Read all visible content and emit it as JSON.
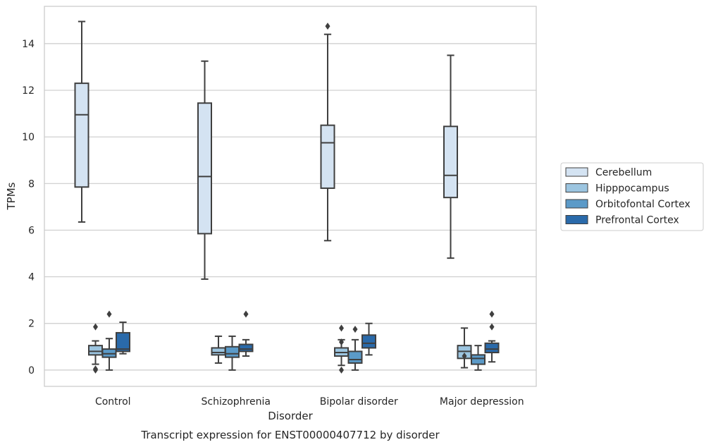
{
  "chart_data": {
    "type": "boxplot",
    "title": "Transcript expression for ENST00000407712 by disorder",
    "xlabel": "Disorder",
    "ylabel": "TPMs",
    "categories": [
      "Control",
      "Schizophrenia",
      "Bipolar disorder",
      "Major depression"
    ],
    "ylim": [
      -0.7,
      15.6
    ],
    "yticks": [
      0,
      2,
      4,
      6,
      8,
      10,
      12,
      14
    ],
    "grid": "horizontal",
    "legend_position": "right",
    "series": [
      {
        "name": "Cerebellum",
        "color": "#d4e3f2",
        "boxes": [
          {
            "whislo": 6.35,
            "q1": 7.85,
            "med": 10.95,
            "q3": 12.3,
            "whishi": 14.95,
            "fliers": []
          },
          {
            "whislo": 3.9,
            "q1": 5.85,
            "med": 8.3,
            "q3": 11.45,
            "whishi": 13.25,
            "fliers": []
          },
          {
            "whislo": 5.55,
            "q1": 7.8,
            "med": 9.75,
            "q3": 10.5,
            "whishi": 14.4,
            "fliers": [
              14.75
            ]
          },
          {
            "whislo": 4.8,
            "q1": 7.4,
            "med": 8.35,
            "q3": 10.45,
            "whishi": 13.5,
            "fliers": []
          }
        ]
      },
      {
        "name": "Hipppocampus",
        "color": "#9cc5e0",
        "boxes": [
          {
            "whislo": 0.25,
            "q1": 0.65,
            "med": 0.8,
            "q3": 1.05,
            "whishi": 1.25,
            "fliers": [
              1.85,
              0.05,
              0.0
            ]
          },
          {
            "whislo": 0.3,
            "q1": 0.65,
            "med": 0.75,
            "q3": 0.95,
            "whishi": 1.45,
            "fliers": []
          },
          {
            "whislo": 0.2,
            "q1": 0.6,
            "med": 0.75,
            "q3": 0.95,
            "whishi": 1.3,
            "fliers": [
              1.8,
              1.2,
              0.0
            ]
          },
          {
            "whislo": 0.1,
            "q1": 0.5,
            "med": 0.8,
            "q3": 1.05,
            "whishi": 1.8,
            "fliers": [
              0.6
            ]
          }
        ]
      },
      {
        "name": "Orbitofontal Cortex",
        "color": "#5b9ac8",
        "boxes": [
          {
            "whislo": 0.0,
            "q1": 0.55,
            "med": 0.7,
            "q3": 0.9,
            "whishi": 1.35,
            "fliers": [
              2.4
            ]
          },
          {
            "whislo": 0.0,
            "q1": 0.55,
            "med": 0.7,
            "q3": 1.0,
            "whishi": 1.45,
            "fliers": []
          },
          {
            "whislo": 0.0,
            "q1": 0.3,
            "med": 0.45,
            "q3": 0.8,
            "whishi": 1.3,
            "fliers": [
              1.75
            ]
          },
          {
            "whislo": 0.0,
            "q1": 0.25,
            "med": 0.5,
            "q3": 0.65,
            "whishi": 1.05,
            "fliers": []
          }
        ]
      },
      {
        "name": "Prefrontal Cortex",
        "color": "#2a6aaa",
        "boxes": [
          {
            "whislo": 0.7,
            "q1": 0.8,
            "med": 0.9,
            "q3": 1.6,
            "whishi": 2.05,
            "fliers": []
          },
          {
            "whislo": 0.6,
            "q1": 0.8,
            "med": 0.9,
            "q3": 1.1,
            "whishi": 1.3,
            "fliers": [
              2.4
            ]
          },
          {
            "whislo": 0.65,
            "q1": 0.95,
            "med": 1.15,
            "q3": 1.5,
            "whishi": 2.0,
            "fliers": []
          },
          {
            "whislo": 0.35,
            "q1": 0.75,
            "med": 0.9,
            "q3": 1.15,
            "whishi": 1.25,
            "fliers": [
              2.4,
              1.85
            ]
          }
        ]
      }
    ]
  }
}
